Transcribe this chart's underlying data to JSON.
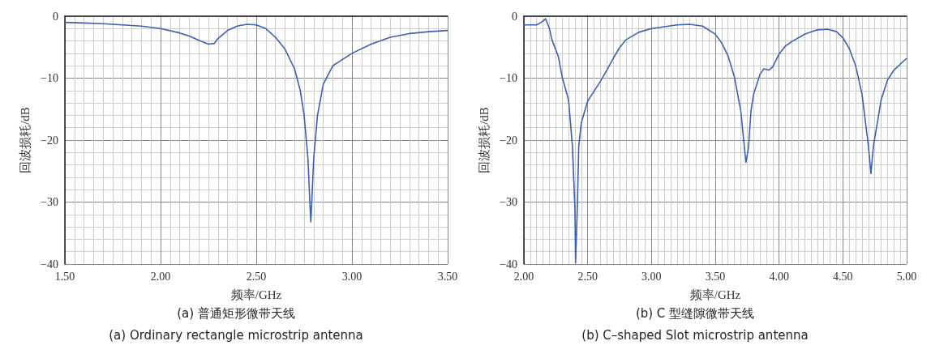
{
  "chart_data": [
    {
      "type": "line",
      "xlabel": "频率/GHz",
      "ylabel": "回波损耗/dB",
      "annotations": [
        "(a) 普通矩形微带天线",
        "(a) Ordinary rectangle microstrip antenna"
      ],
      "xlim": [
        1.5,
        3.5
      ],
      "xticks": [
        {
          "value": 1.5,
          "label": "1.50"
        },
        {
          "value": 2,
          "label": "2.00"
        },
        {
          "value": 2.5,
          "label": "2.50"
        },
        {
          "value": 3,
          "label": "3.00"
        },
        {
          "value": 3.5,
          "label": "3.50"
        }
      ],
      "ylim": [
        -40,
        0
      ],
      "yticks": [
        {
          "value": -40,
          "label": "−40"
        },
        {
          "value": -30,
          "label": "−30"
        },
        {
          "value": -20,
          "label": "−20"
        },
        {
          "value": -10,
          "label": "−10"
        },
        0
      ],
      "grid": true,
      "marker": "none",
      "line_style": "solid",
      "series": [
        {
          "color": "#3a5fb8",
          "x": [
            1.5,
            1.6,
            1.7,
            1.8,
            1.9,
            2.0,
            2.1,
            2.15,
            2.2,
            2.25,
            2.28,
            2.3,
            2.35,
            2.4,
            2.45,
            2.5,
            2.55,
            2.6,
            2.65,
            2.7,
            2.73,
            2.75,
            2.77,
            2.78,
            2.785,
            2.79,
            2.8,
            2.82,
            2.85,
            2.9,
            3.0,
            3.1,
            3.2,
            3.3,
            3.4,
            3.5
          ],
          "values": [
            -1.0,
            -1.1,
            -1.2,
            -1.4,
            -1.6,
            -2.0,
            -2.7,
            -3.2,
            -3.9,
            -4.5,
            -4.4,
            -3.6,
            -2.3,
            -1.6,
            -1.3,
            -1.4,
            -2.0,
            -3.4,
            -5.3,
            -8.5,
            -12,
            -16,
            -23,
            -30,
            -33.2,
            -30,
            -23,
            -16,
            -11,
            -8,
            -6.0,
            -4.5,
            -3.4,
            -2.8,
            -2.5,
            -2.3
          ]
        }
      ]
    },
    {
      "type": "line",
      "xlabel": "频率/GHz",
      "ylabel": "回波损耗/dB",
      "annotations": [
        "(b) C 型缝隙微带天线",
        "(b) C–shaped Slot microstrip antenna"
      ],
      "xlim": [
        2,
        5
      ],
      "xticks": [
        {
          "value": 2,
          "label": "2.00"
        },
        {
          "value": 2.5,
          "label": "2.50"
        },
        {
          "value": 3,
          "label": "3.00"
        },
        {
          "value": 3.5,
          "label": "3.50"
        },
        {
          "value": 4,
          "label": "4.00"
        },
        {
          "value": 4.5,
          "label": "4.50"
        },
        {
          "value": 5,
          "label": "5.00"
        }
      ],
      "ylim": [
        -40,
        0
      ],
      "yticks": [
        {
          "value": -40,
          "label": "−40"
        },
        {
          "value": -30,
          "label": "−30"
        },
        {
          "value": -20,
          "label": "−20"
        },
        {
          "value": -10,
          "label": "−10"
        },
        0
      ],
      "grid": true,
      "marker": "none",
      "line_style": "solid",
      "series": [
        {
          "color": "#3a5fb8",
          "x": [
            2.0,
            2.1,
            2.15,
            2.17,
            2.2,
            2.22,
            2.27,
            2.3,
            2.35,
            2.38,
            2.4,
            2.405,
            2.42,
            2.43,
            2.45,
            2.5,
            2.55,
            2.6,
            2.65,
            2.7,
            2.75,
            2.8,
            2.9,
            3.0,
            3.1,
            3.2,
            3.3,
            3.4,
            3.5,
            3.55,
            3.6,
            3.65,
            3.7,
            3.74,
            3.76,
            3.78,
            3.8,
            3.85,
            3.88,
            3.92,
            3.95,
            4.0,
            4.05,
            4.1,
            4.2,
            4.3,
            4.38,
            4.45,
            4.5,
            4.55,
            4.6,
            4.65,
            4.7,
            4.72,
            4.74,
            4.77,
            4.8,
            4.85,
            4.9,
            5.0
          ],
          "values": [
            -1.4,
            -1.4,
            -0.8,
            -0.4,
            -2.0,
            -3.8,
            -6.5,
            -9.8,
            -13.5,
            -20.9,
            -31,
            -39.8,
            -30,
            -21,
            -17.2,
            -13.7,
            -12.1,
            -10.5,
            -8.7,
            -6.8,
            -5.1,
            -3.8,
            -2.6,
            -2.0,
            -1.7,
            -1.4,
            -1.3,
            -1.6,
            -2.9,
            -4.3,
            -6.4,
            -9.8,
            -15.3,
            -23.6,
            -21.3,
            -15.3,
            -12.6,
            -9.4,
            -8.5,
            -8.7,
            -8.2,
            -6.1,
            -4.8,
            -4.1,
            -2.9,
            -2.2,
            -2.1,
            -2.5,
            -3.5,
            -5.2,
            -8.0,
            -12.6,
            -20.9,
            -25.4,
            -20.9,
            -17.2,
            -13.5,
            -10.3,
            -8.7,
            -6.8
          ]
        }
      ]
    }
  ]
}
